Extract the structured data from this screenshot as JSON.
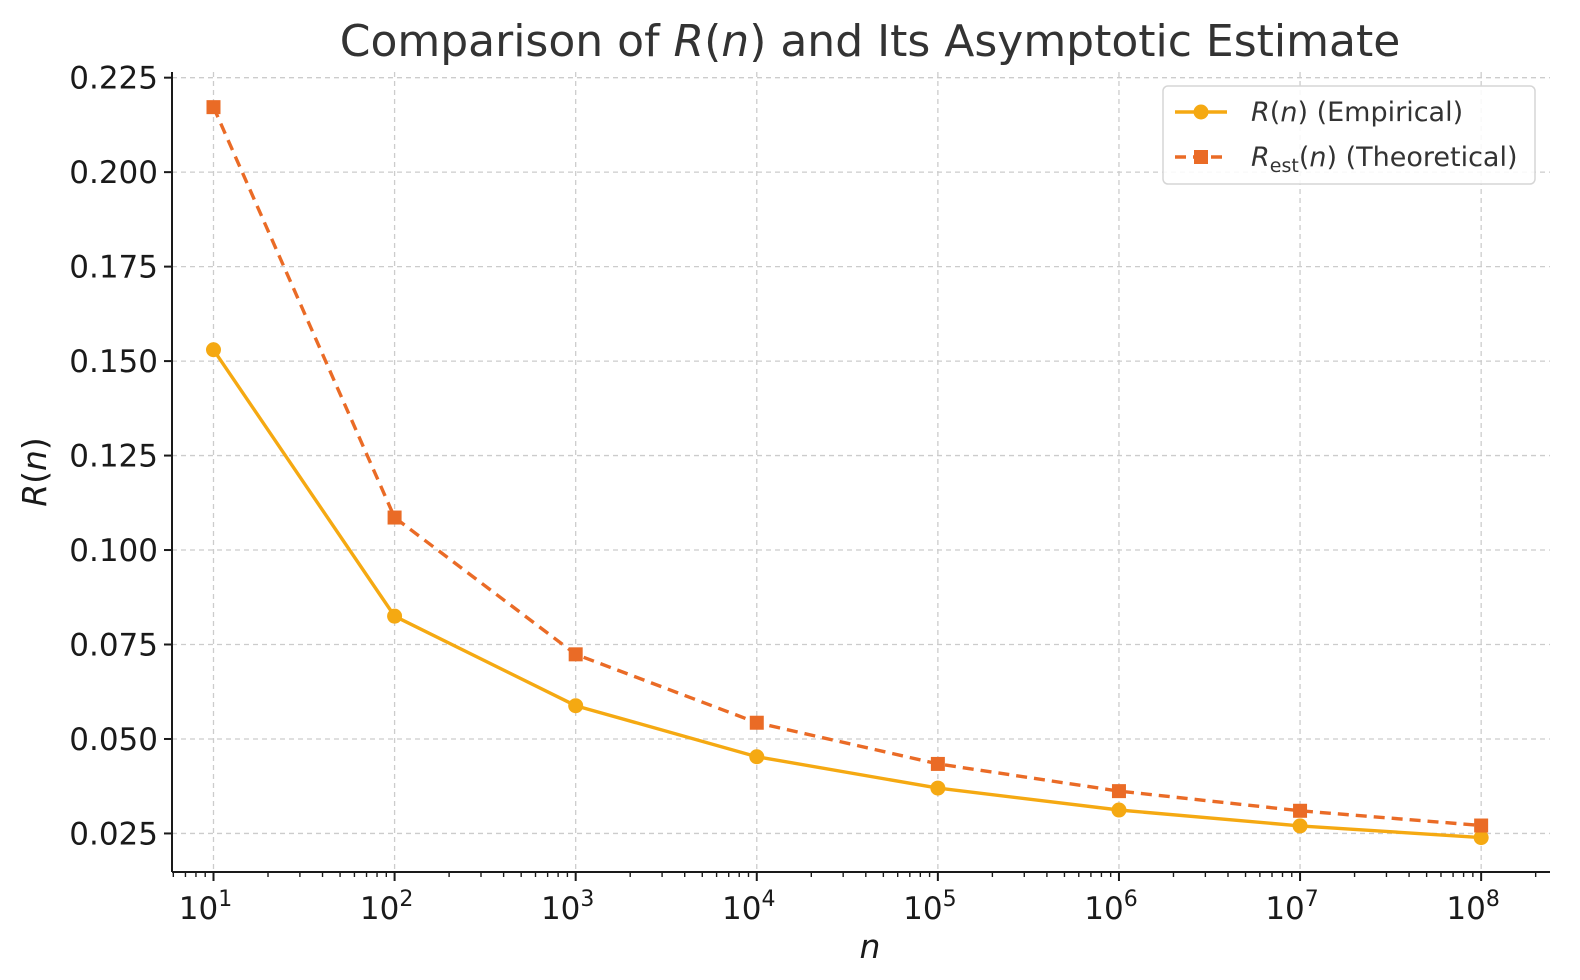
{
  "chart_data": {
    "type": "line",
    "title": {
      "prefix": "Comparison of ",
      "symbol": "R",
      "arg": "n",
      "suffix": " and Its Asymptotic Estimate"
    },
    "xlabel": "n",
    "ylabel": {
      "symbol": "R",
      "arg": "n"
    },
    "x_scale": "log",
    "x": [
      10,
      100,
      1000,
      10000,
      100000,
      1000000,
      10000000,
      100000000
    ],
    "x_ticks": [
      {
        "base": "10",
        "exp": "1",
        "value": 10
      },
      {
        "base": "10",
        "exp": "2",
        "value": 100
      },
      {
        "base": "10",
        "exp": "3",
        "value": 1000
      },
      {
        "base": "10",
        "exp": "4",
        "value": 10000
      },
      {
        "base": "10",
        "exp": "5",
        "value": 100000
      },
      {
        "base": "10",
        "exp": "6",
        "value": 1000000
      },
      {
        "base": "10",
        "exp": "7",
        "value": 10000000
      },
      {
        "base": "10",
        "exp": "8",
        "value": 100000000
      }
    ],
    "xlim": [
      5.9,
      240000000
    ],
    "ylim": [
      0.0148,
      0.2265
    ],
    "y_ticks": [
      "0.025",
      "0.050",
      "0.075",
      "0.100",
      "0.125",
      "0.150",
      "0.175",
      "0.200",
      "0.225"
    ],
    "grid": true,
    "legend_position": "top-right",
    "series": [
      {
        "name": {
          "symbol": "R",
          "sub": "",
          "arg": "n",
          "desc": " (Empirical)"
        },
        "color": "#f5a912",
        "line_style": "solid",
        "marker": "circle",
        "values": [
          0.153,
          0.0825,
          0.0588,
          0.0453,
          0.037,
          0.0312,
          0.027,
          0.0239
        ]
      },
      {
        "name": {
          "symbol": "R",
          "sub": "est",
          "arg": "n",
          "desc": " (Theoretical)"
        },
        "color": "#ea6b26",
        "line_style": "dashed",
        "marker": "square",
        "values": [
          0.2172,
          0.1086,
          0.0724,
          0.0543,
          0.0434,
          0.0362,
          0.031,
          0.0271
        ]
      }
    ]
  }
}
